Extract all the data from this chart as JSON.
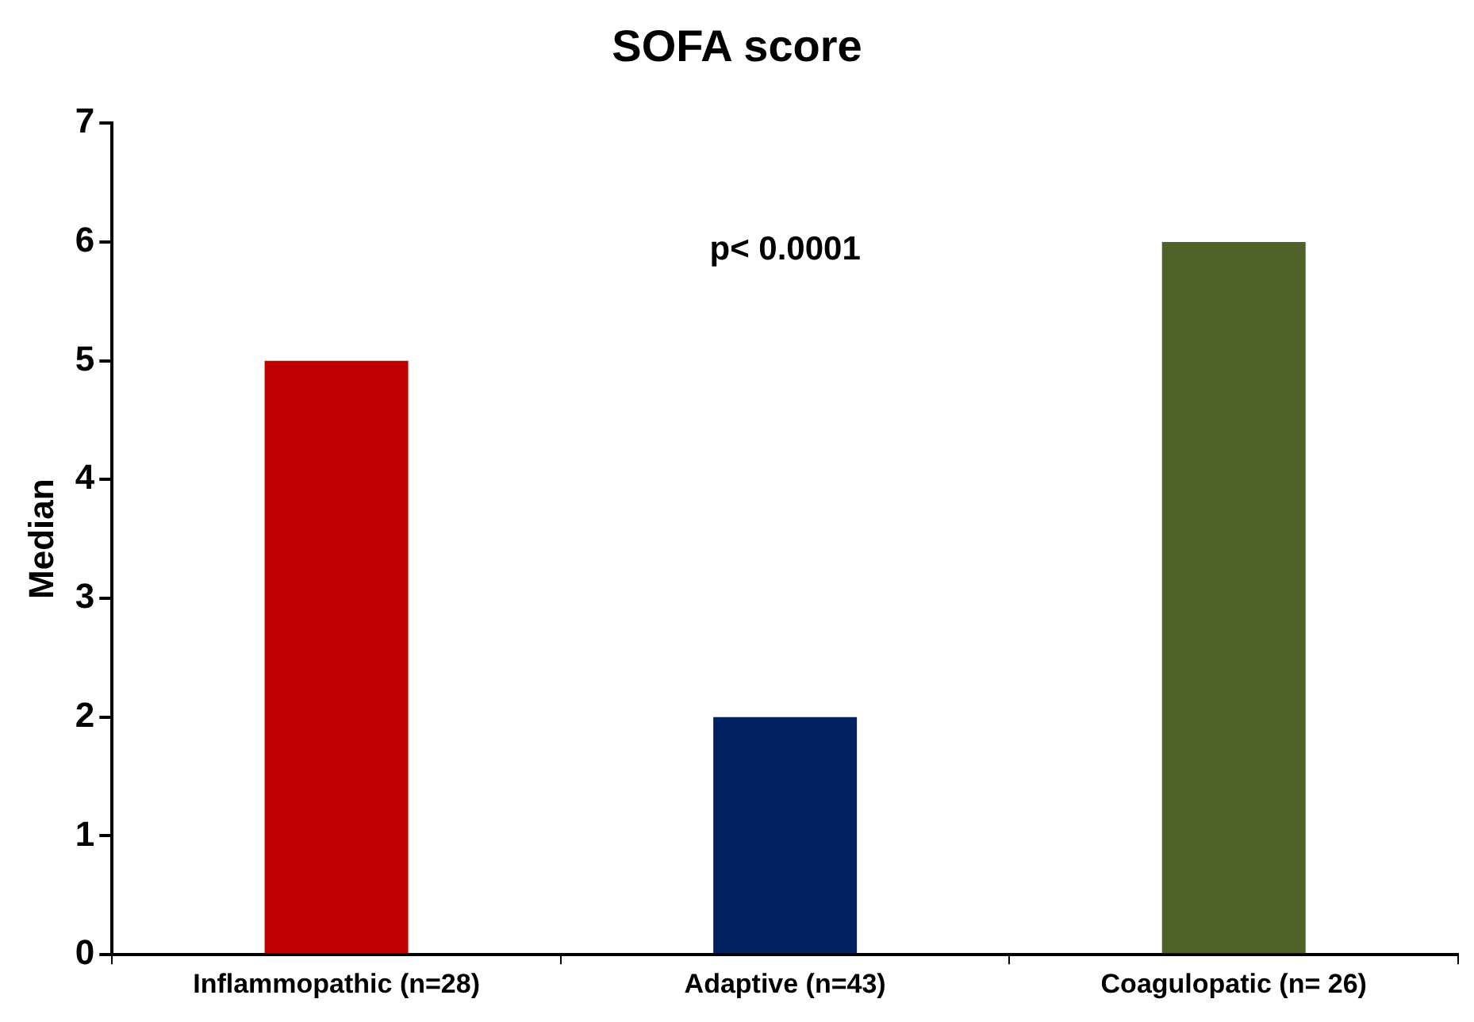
{
  "chart_data": {
    "type": "bar",
    "title": "SOFA score",
    "ylabel": "Median",
    "categories": [
      "Inflammopathic (n=28)",
      "Adaptive (n=43)",
      "Coagulopatic (n= 26)"
    ],
    "values": [
      5,
      2,
      6
    ],
    "colors": [
      "#c00000",
      "#002060",
      "#4f6228"
    ],
    "ylim": [
      0,
      7
    ],
    "yticks": [
      0,
      1,
      2,
      3,
      4,
      5,
      6,
      7
    ],
    "grid": false,
    "legend": false,
    "annotations": [
      "p< 0.0001"
    ]
  }
}
